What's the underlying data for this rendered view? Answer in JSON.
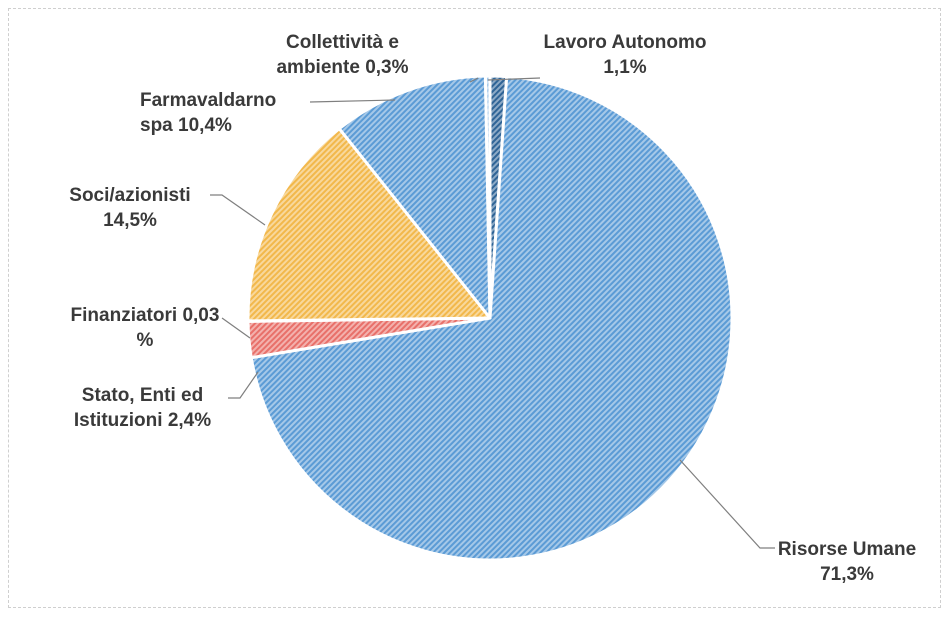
{
  "chart_data": {
    "type": "pie",
    "categories": [
      "Lavoro Autonomo",
      "Risorse Umane",
      "Stato, Enti ed Istituzioni",
      "Finanziatori",
      "Soci/azionisti",
      "Farmavaldarno spa",
      "Collettività e ambiente"
    ],
    "values": [
      1.1,
      71.3,
      2.4,
      0.03,
      14.5,
      10.4,
      0.3
    ],
    "value_labels": [
      "1,1%",
      "71,3%",
      "2,4%",
      "0,03 %",
      "14,5%",
      "10,4%",
      "0,3%"
    ],
    "colors": [
      "#2f6496",
      "#5b9bd5",
      "#e8706a",
      "#e8706a",
      "#f2b84b",
      "#5b9bd5",
      "#9dc3e6"
    ]
  }
}
